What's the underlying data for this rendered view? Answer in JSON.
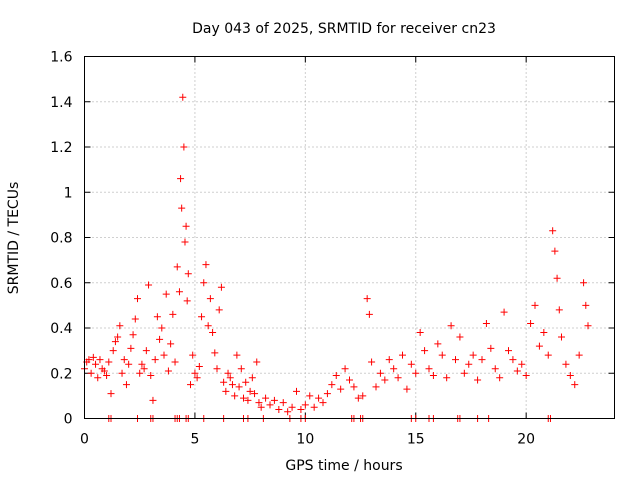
{
  "chart_data": {
    "type": "scatter",
    "title": "Day 043 of 2025, SRMTID for receiver cn23",
    "xlabel": "GPS time / hours",
    "ylabel": "SRMTID / TECUs",
    "xlim": [
      0,
      24
    ],
    "ylim": [
      0,
      1.6
    ],
    "xticks": [
      0,
      5,
      10,
      15,
      20
    ],
    "xtick_labels": [
      "0",
      "5",
      "10",
      "15",
      "20"
    ],
    "yticks": [
      0,
      0.2,
      0.4,
      0.6,
      0.8,
      1.0,
      1.2,
      1.4,
      1.6
    ],
    "ytick_labels": [
      "0",
      "0.2",
      "0.4",
      "0.6",
      "0.8",
      "1",
      "1.2",
      "1.4",
      "1.6"
    ],
    "grid": true,
    "marker": "plus",
    "color": "#ff0000",
    "series": [
      {
        "name": "SRMTID",
        "points": [
          [
            0.0,
            0.22
          ],
          [
            0.1,
            0.25
          ],
          [
            0.2,
            0.26
          ],
          [
            0.3,
            0.2
          ],
          [
            0.4,
            0.27
          ],
          [
            0.5,
            0.24
          ],
          [
            0.6,
            0.18
          ],
          [
            0.7,
            0.26
          ],
          [
            0.8,
            0.22
          ],
          [
            0.9,
            0.21
          ],
          [
            1.0,
            0.19
          ],
          [
            1.1,
            0.25
          ],
          [
            1.2,
            0.11
          ],
          [
            1.3,
            0.3
          ],
          [
            1.4,
            0.34
          ],
          [
            1.5,
            0.36
          ],
          [
            1.6,
            0.41
          ],
          [
            1.7,
            0.2
          ],
          [
            1.8,
            0.26
          ],
          [
            1.9,
            0.15
          ],
          [
            2.0,
            0.24
          ],
          [
            2.1,
            0.31
          ],
          [
            2.2,
            0.37
          ],
          [
            2.3,
            0.44
          ],
          [
            2.4,
            0.53
          ],
          [
            2.5,
            0.2
          ],
          [
            2.6,
            0.24
          ],
          [
            2.7,
            0.22
          ],
          [
            2.8,
            0.3
          ],
          [
            2.9,
            0.59
          ],
          [
            3.0,
            0.19
          ],
          [
            3.1,
            0.08
          ],
          [
            3.2,
            0.26
          ],
          [
            3.3,
            0.45
          ],
          [
            3.4,
            0.35
          ],
          [
            3.5,
            0.4
          ],
          [
            3.6,
            0.28
          ],
          [
            3.7,
            0.55
          ],
          [
            3.8,
            0.21
          ],
          [
            3.9,
            0.33
          ],
          [
            4.0,
            0.46
          ],
          [
            4.1,
            0.25
          ],
          [
            4.2,
            0.67
          ],
          [
            4.3,
            0.56
          ],
          [
            4.35,
            1.06
          ],
          [
            4.4,
            0.93
          ],
          [
            4.45,
            1.42
          ],
          [
            4.5,
            1.2
          ],
          [
            4.55,
            0.78
          ],
          [
            4.6,
            0.85
          ],
          [
            4.65,
            0.52
          ],
          [
            4.7,
            0.64
          ],
          [
            4.8,
            0.15
          ],
          [
            4.9,
            0.28
          ],
          [
            5.0,
            0.2
          ],
          [
            5.1,
            0.18
          ],
          [
            5.2,
            0.23
          ],
          [
            5.3,
            0.45
          ],
          [
            5.4,
            0.6
          ],
          [
            5.5,
            0.68
          ],
          [
            5.6,
            0.41
          ],
          [
            5.7,
            0.53
          ],
          [
            5.8,
            0.38
          ],
          [
            5.9,
            0.29
          ],
          [
            6.0,
            0.22
          ],
          [
            6.1,
            0.48
          ],
          [
            6.2,
            0.58
          ],
          [
            6.3,
            0.16
          ],
          [
            6.4,
            0.12
          ],
          [
            6.5,
            0.2
          ],
          [
            6.6,
            0.18
          ],
          [
            6.7,
            0.15
          ],
          [
            6.8,
            0.1
          ],
          [
            6.9,
            0.28
          ],
          [
            7.0,
            0.14
          ],
          [
            7.1,
            0.22
          ],
          [
            7.2,
            0.09
          ],
          [
            7.3,
            0.16
          ],
          [
            7.4,
            0.08
          ],
          [
            7.5,
            0.12
          ],
          [
            7.6,
            0.18
          ],
          [
            7.7,
            0.11
          ],
          [
            7.8,
            0.25
          ],
          [
            7.9,
            0.07
          ],
          [
            8.0,
            0.05
          ],
          [
            8.2,
            0.09
          ],
          [
            8.4,
            0.06
          ],
          [
            8.6,
            0.08
          ],
          [
            8.8,
            0.04
          ],
          [
            9.0,
            0.07
          ],
          [
            9.2,
            0.03
          ],
          [
            9.4,
            0.05
          ],
          [
            9.6,
            0.12
          ],
          [
            9.8,
            0.04
          ],
          [
            10.0,
            0.06
          ],
          [
            10.2,
            0.1
          ],
          [
            10.4,
            0.05
          ],
          [
            10.6,
            0.09
          ],
          [
            10.8,
            0.07
          ],
          [
            11.0,
            0.11
          ],
          [
            11.2,
            0.15
          ],
          [
            11.4,
            0.19
          ],
          [
            11.6,
            0.13
          ],
          [
            11.8,
            0.22
          ],
          [
            12.0,
            0.17
          ],
          [
            12.2,
            0.14
          ],
          [
            12.4,
            0.09
          ],
          [
            12.6,
            0.1
          ],
          [
            12.8,
            0.53
          ],
          [
            12.9,
            0.46
          ],
          [
            13.0,
            0.25
          ],
          [
            13.2,
            0.14
          ],
          [
            13.4,
            0.2
          ],
          [
            13.6,
            0.17
          ],
          [
            13.8,
            0.26
          ],
          [
            14.0,
            0.22
          ],
          [
            14.2,
            0.18
          ],
          [
            14.4,
            0.28
          ],
          [
            14.6,
            0.13
          ],
          [
            14.8,
            0.24
          ],
          [
            15.0,
            0.2
          ],
          [
            15.2,
            0.38
          ],
          [
            15.4,
            0.3
          ],
          [
            15.6,
            0.22
          ],
          [
            15.8,
            0.19
          ],
          [
            16.0,
            0.33
          ],
          [
            16.2,
            0.28
          ],
          [
            16.4,
            0.18
          ],
          [
            16.6,
            0.41
          ],
          [
            16.8,
            0.26
          ],
          [
            17.0,
            0.36
          ],
          [
            17.2,
            0.2
          ],
          [
            17.4,
            0.24
          ],
          [
            17.6,
            0.28
          ],
          [
            17.8,
            0.17
          ],
          [
            18.0,
            0.26
          ],
          [
            18.2,
            0.42
          ],
          [
            18.4,
            0.31
          ],
          [
            18.6,
            0.22
          ],
          [
            18.8,
            0.18
          ],
          [
            19.0,
            0.47
          ],
          [
            19.2,
            0.3
          ],
          [
            19.4,
            0.26
          ],
          [
            19.6,
            0.21
          ],
          [
            19.8,
            0.24
          ],
          [
            20.0,
            0.19
          ],
          [
            20.2,
            0.42
          ],
          [
            20.4,
            0.5
          ],
          [
            20.6,
            0.32
          ],
          [
            20.8,
            0.38
          ],
          [
            21.0,
            0.28
          ],
          [
            21.2,
            0.83
          ],
          [
            21.3,
            0.74
          ],
          [
            21.4,
            0.62
          ],
          [
            21.5,
            0.48
          ],
          [
            21.6,
            0.36
          ],
          [
            21.8,
            0.24
          ],
          [
            22.0,
            0.19
          ],
          [
            22.2,
            0.15
          ],
          [
            22.4,
            0.28
          ],
          [
            22.6,
            0.6
          ],
          [
            22.7,
            0.5
          ],
          [
            22.8,
            0.41
          ]
        ]
      }
    ],
    "zero_points_x": [
      1.1,
      1.2,
      2.4,
      3.0,
      3.1,
      4.1,
      4.2,
      4.3,
      4.6,
      4.7,
      5.4,
      6.3,
      7.2,
      7.4,
      8.1,
      9.3,
      9.8,
      10.0,
      12.1,
      12.2,
      12.5,
      12.6,
      14.8,
      15.0,
      15.6,
      15.8,
      16.9,
      17.0,
      17.8,
      18.3,
      21.0,
      21.1
    ]
  }
}
